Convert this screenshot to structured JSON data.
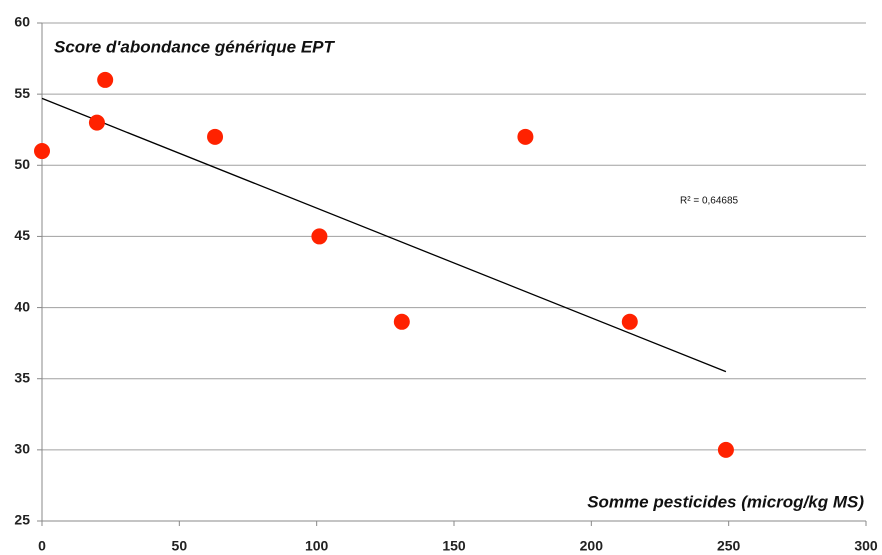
{
  "chart_data": {
    "type": "scatter",
    "title": "Score d'abondance générique EPT",
    "x_label": "Somme pesticides (microg/kg MS)",
    "annotation": "R² = 0,64685",
    "series": [
      {
        "color": "#ff2200",
        "x": [
          0,
          20,
          23,
          63,
          101,
          131,
          176,
          214,
          249
        ],
        "values": [
          51,
          53,
          56,
          52,
          45,
          39,
          52,
          39,
          30
        ]
      }
    ],
    "trendline": {
      "color": "#000000",
      "x": [
        0,
        249
      ],
      "values": [
        54.7,
        35.5
      ]
    },
    "xlim": [
      0,
      300
    ],
    "xticks": [
      0,
      50,
      100,
      150,
      200,
      250,
      300
    ],
    "ylim": [
      25,
      60
    ],
    "yticks": [
      25,
      30,
      35,
      40,
      45,
      50,
      55,
      60
    ],
    "grid": true
  }
}
